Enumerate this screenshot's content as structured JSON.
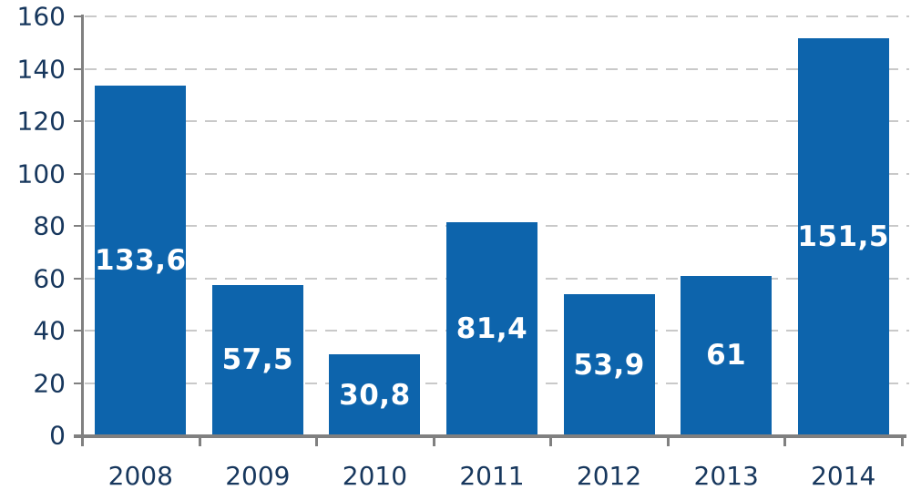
{
  "chart_data": {
    "type": "bar",
    "title": "",
    "xlabel": "",
    "ylabel": "",
    "categories": [
      "2008",
      "2009",
      "2010",
      "2011",
      "2012",
      "2013",
      "2014"
    ],
    "values": [
      133.6,
      57.5,
      30.8,
      81.4,
      53.9,
      61,
      151.5
    ],
    "value_labels": [
      "133,6",
      "57,5",
      "30,8",
      "81,4",
      "53,9",
      "61",
      "151,5"
    ],
    "value_label_position": "inside-center",
    "ylim": [
      0,
      160
    ],
    "yticks": [
      0,
      20,
      40,
      60,
      80,
      100,
      120,
      140,
      160
    ],
    "grid": "horizontal-dashed",
    "legend_position": "none",
    "colors": {
      "bar": "#0D64AC",
      "axis": "#808080",
      "gridline": "#C9C9C9",
      "tick_label_text": "#17375D",
      "data_label_text": "#FFFFFF",
      "background": "#FFFFFF"
    }
  }
}
